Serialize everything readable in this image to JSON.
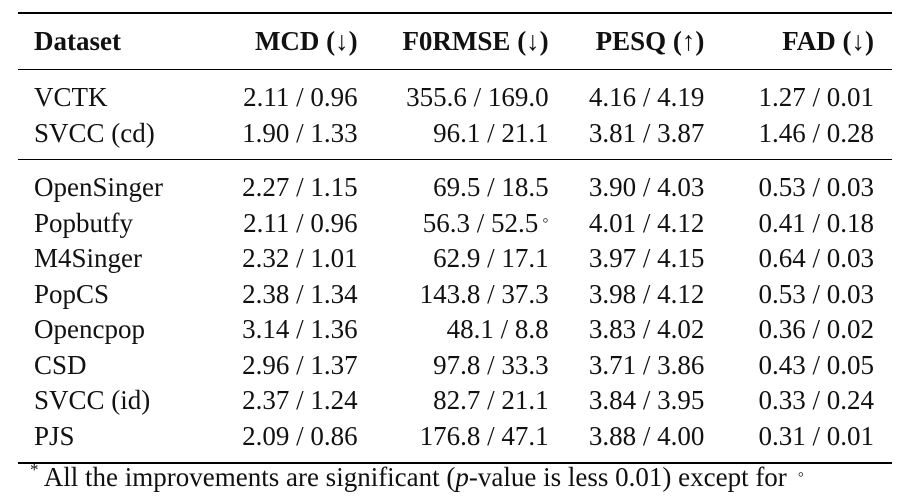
{
  "table": {
    "headers": {
      "dataset": "Dataset",
      "mcd": "MCD (↓)",
      "f0rmse": "F0RMSE (↓)",
      "pesq": "PESQ (↑)",
      "fad": "FAD (↓)"
    },
    "group1": [
      {
        "dataset": "VCTK",
        "mcd": "2.11 / 0.96",
        "f0rmse": "355.6 / 169.0",
        "pesq": "4.16 / 4.19",
        "fad": "1.27 / 0.01"
      },
      {
        "dataset": "SVCC (cd)",
        "mcd": "1.90 / 1.33",
        "f0rmse": "96.1 / 21.1",
        "pesq": "3.81 / 3.87",
        "fad": "1.46 / 0.28"
      }
    ],
    "group2": [
      {
        "dataset": "OpenSinger",
        "mcd": "2.27 / 1.15",
        "f0rmse": "69.5 / 18.5",
        "pesq": "3.90 / 4.03",
        "fad": "0.53 / 0.03"
      },
      {
        "dataset": "Popbutfy",
        "mcd": "2.11 / 0.96",
        "f0rmse": "56.3 / 52.5",
        "f0rmse_mark": "◦",
        "pesq": "4.01 / 4.12",
        "fad": "0.41 / 0.18"
      },
      {
        "dataset": "M4Singer",
        "mcd": "2.32 / 1.01",
        "f0rmse": "62.9 / 17.1",
        "pesq": "3.97 / 4.15",
        "fad": "0.64 / 0.03"
      },
      {
        "dataset": "PopCS",
        "mcd": "2.38 / 1.34",
        "f0rmse": "143.8 / 37.3",
        "pesq": "3.98 / 4.12",
        "fad": "0.53 / 0.03"
      },
      {
        "dataset": "Opencpop",
        "mcd": "3.14 / 1.36",
        "f0rmse": "48.1 / 8.8",
        "pesq": "3.83 / 4.02",
        "fad": "0.36 / 0.02"
      },
      {
        "dataset": "CSD",
        "mcd": "2.96 / 1.37",
        "f0rmse": "97.8 / 33.3",
        "pesq": "3.71 / 3.86",
        "fad": "0.43 / 0.05"
      },
      {
        "dataset": "SVCC (id)",
        "mcd": "2.37 / 1.24",
        "f0rmse": "82.7 / 21.1",
        "pesq": "3.84 / 3.95",
        "fad": "0.33 / 0.24"
      },
      {
        "dataset": "PJS",
        "mcd": "2.09 / 0.86",
        "f0rmse": "176.8 / 47.1",
        "pesq": "3.88 / 4.00",
        "fad": "0.31 / 0.01"
      }
    ]
  },
  "footnote": {
    "star": "*",
    "before_p": "All the improvements are significant (",
    "p": "p",
    "after_p": "-value is less 0.01) except for",
    "mark": "◦"
  }
}
